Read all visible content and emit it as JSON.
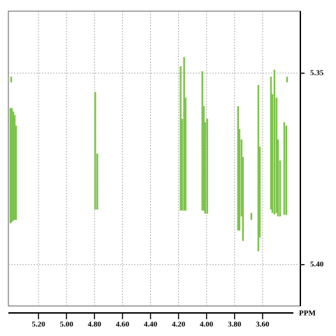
{
  "chart_data": {
    "type": "nmr2d",
    "color": "#7cc44a",
    "x_label": "PPM",
    "grid": true,
    "xlim": [
      5.415,
      3.33
    ],
    "ylim": [
      5.3338,
      5.4108
    ],
    "xticks": [
      {
        "value": 5.2,
        "label": "5.20"
      },
      {
        "value": 5.0,
        "label": "5.00"
      },
      {
        "value": 4.8,
        "label": "4.80"
      },
      {
        "value": 4.6,
        "label": "4.60"
      },
      {
        "value": 4.4,
        "label": "4.40"
      },
      {
        "value": 4.2,
        "label": "4.20"
      },
      {
        "value": 4.0,
        "label": "4.00"
      },
      {
        "value": 3.8,
        "label": "3.80"
      },
      {
        "value": 3.6,
        "label": "3.60"
      }
    ],
    "yticks": [
      5.35,
      {
        "value": 5.4,
        "label": "5.40"
      }
    ],
    "segments": [
      [
        5.395,
        5.3509,
        5.3524
      ],
      [
        5.4,
        5.3591,
        5.3892
      ],
      [
        5.39,
        5.3591,
        5.3889
      ],
      [
        5.38,
        5.36,
        5.3885
      ],
      [
        5.37,
        5.3609,
        5.3883
      ],
      [
        5.36,
        5.3637,
        5.3883
      ],
      [
        4.795,
        5.3549,
        5.3856
      ],
      [
        4.78,
        5.371,
        5.3856
      ],
      [
        4.185,
        5.3482,
        5.3859
      ],
      [
        4.175,
        5.3619,
        5.3859
      ],
      [
        4.16,
        5.3458,
        5.3859
      ],
      [
        4.15,
        5.3564,
        5.3859
      ],
      [
        4.03,
        5.3495,
        5.3859
      ],
      [
        4.02,
        5.3586,
        5.3859
      ],
      [
        4.01,
        5.3628,
        5.3867
      ],
      [
        3.995,
        5.3619,
        5.3867
      ],
      [
        3.775,
        5.3586,
        5.3911
      ],
      [
        3.765,
        5.3646,
        5.3911
      ],
      [
        3.75,
        5.3673,
        5.3874
      ],
      [
        3.74,
        5.3719,
        5.3938
      ],
      [
        3.68,
        5.3865,
        5.3883
      ],
      [
        3.63,
        5.3531,
        5.3965
      ],
      [
        3.62,
        5.3692,
        5.3929
      ],
      [
        3.54,
        5.3509,
        5.3856
      ],
      [
        3.53,
        5.3555,
        5.3865
      ],
      [
        3.515,
        5.3491,
        5.3869
      ],
      [
        3.5,
        5.3564,
        5.3865
      ],
      [
        3.49,
        5.3673,
        5.3874
      ],
      [
        3.475,
        5.3728,
        5.3874
      ],
      [
        3.445,
        5.3628,
        5.387
      ],
      [
        3.43,
        5.3637,
        5.387
      ],
      [
        3.425,
        5.3509,
        5.3524
      ]
    ]
  }
}
